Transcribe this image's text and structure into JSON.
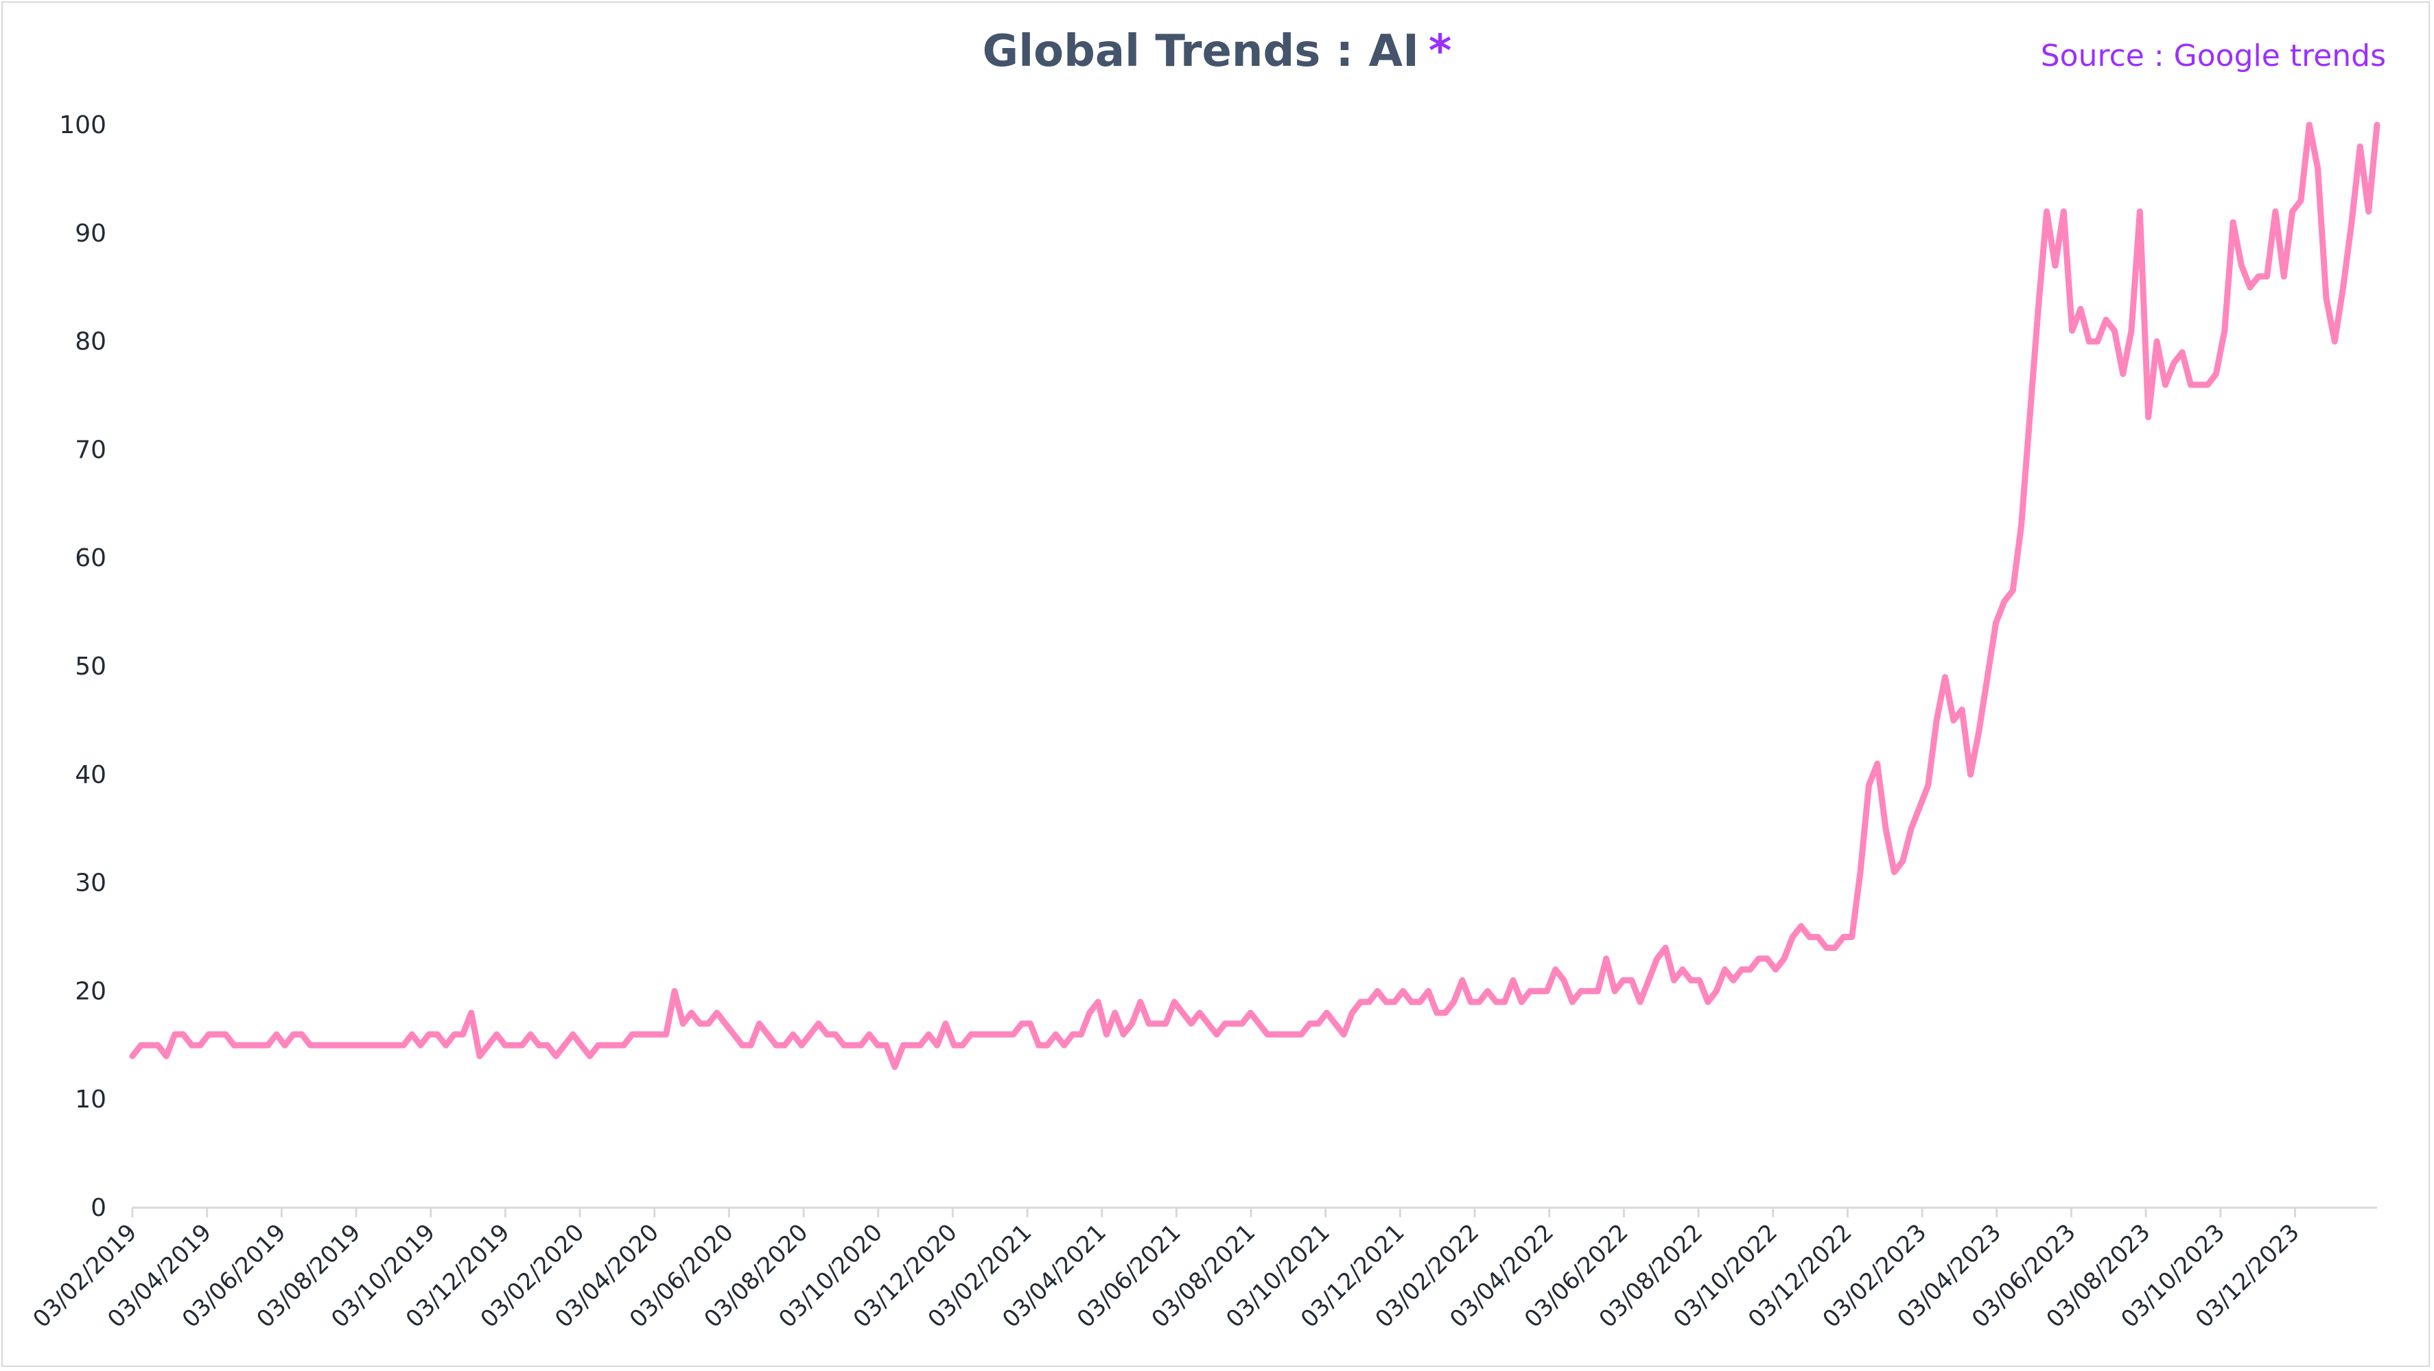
{
  "chart_title": "Global Trends : AI",
  "title_marker": "*",
  "source_text": "Source : Google trends",
  "colors": {
    "line": "#ff85bd",
    "title": "#44546a",
    "accent": "#9b30ff",
    "axis": "#d9d9d9",
    "tick_text": "#222a35"
  },
  "chart_data": {
    "type": "line",
    "title": "Global Trends : AI",
    "xlabel": "",
    "ylabel": "",
    "grid": false,
    "legend": "none",
    "ylim": [
      0,
      100
    ],
    "yticks": [
      0,
      10,
      20,
      30,
      40,
      50,
      60,
      70,
      80,
      90,
      100
    ],
    "xtick_labels": [
      "03/02/2019",
      "03/04/2019",
      "03/06/2019",
      "03/08/2019",
      "03/10/2019",
      "03/12/2019",
      "03/02/2020",
      "03/04/2020",
      "03/06/2020",
      "03/08/2020",
      "03/10/2020",
      "03/12/2020",
      "03/02/2021",
      "03/04/2021",
      "03/06/2021",
      "03/08/2021",
      "03/10/2021",
      "03/12/2021",
      "03/02/2022",
      "03/04/2022",
      "03/06/2022",
      "03/08/2022",
      "03/10/2022",
      "03/12/2022",
      "03/02/2023",
      "03/04/2023",
      "03/06/2023",
      "03/08/2023",
      "03/10/2023",
      "03/12/2023"
    ],
    "frequency": "weekly",
    "x_start": "03/02/2019",
    "x_end": "03/02/2024",
    "series": [
      {
        "values": [
          14,
          15,
          15,
          15,
          14,
          16,
          16,
          15,
          15,
          16,
          16,
          16,
          15,
          15,
          15,
          15,
          15,
          16,
          15,
          16,
          16,
          15,
          15,
          15,
          15,
          15,
          15,
          15,
          15,
          15,
          15,
          15,
          15,
          16,
          15,
          16,
          16,
          15,
          16,
          16,
          18,
          14,
          15,
          16,
          15,
          15,
          15,
          16,
          15,
          15,
          14,
          15,
          16,
          15,
          14,
          15,
          15,
          15,
          15,
          16,
          16,
          16,
          16,
          16,
          20,
          17,
          18,
          17,
          17,
          18,
          17,
          16,
          15,
          15,
          17,
          16,
          15,
          15,
          16,
          15,
          16,
          17,
          16,
          16,
          15,
          15,
          15,
          16,
          15,
          15,
          13,
          15,
          15,
          15,
          16,
          15,
          17,
          15,
          15,
          16,
          16,
          16,
          16,
          16,
          16,
          17,
          17,
          15,
          15,
          16,
          15,
          16,
          16,
          18,
          19,
          16,
          18,
          16,
          17,
          19,
          17,
          17,
          17,
          19,
          18,
          17,
          18,
          17,
          16,
          17,
          17,
          17,
          18,
          17,
          16,
          16,
          16,
          16,
          16,
          17,
          17,
          18,
          17,
          16,
          18,
          19,
          19,
          20,
          19,
          19,
          20,
          19,
          19,
          20,
          18,
          18,
          19,
          21,
          19,
          19,
          20,
          19,
          19,
          21,
          19,
          20,
          20,
          20,
          22,
          21,
          19,
          20,
          20,
          20,
          23,
          20,
          21,
          21,
          19,
          21,
          23,
          24,
          21,
          22,
          21,
          21,
          19,
          20,
          22,
          21,
          22,
          22,
          23,
          23,
          22,
          23,
          25,
          26,
          25,
          25,
          24,
          24,
          25,
          25,
          31,
          39,
          41,
          35,
          31,
          32,
          35,
          37,
          39,
          45,
          49,
          45,
          46,
          40,
          44,
          49,
          54,
          56,
          57,
          63,
          73,
          83,
          92,
          87,
          92,
          81,
          83,
          80,
          80,
          82,
          81,
          77,
          81,
          92,
          73,
          80,
          76,
          78,
          79,
          76,
          76,
          76,
          77,
          81,
          91,
          87,
          85,
          86,
          86,
          92,
          86,
          92,
          93,
          100,
          96,
          84,
          80,
          85,
          91,
          98,
          92,
          100
        ]
      }
    ]
  }
}
